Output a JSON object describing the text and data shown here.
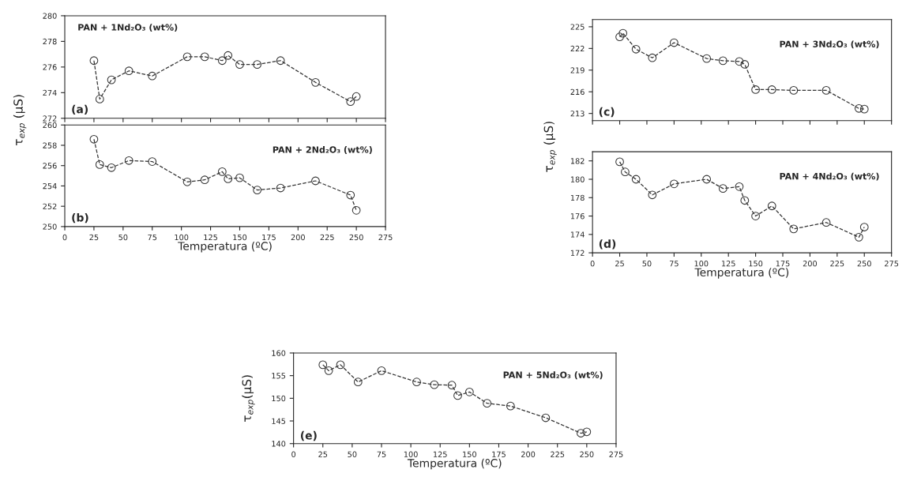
{
  "chart_data": [
    {
      "type": "line",
      "x": [
        25,
        30,
        40,
        55,
        75,
        105,
        120,
        135,
        140,
        150,
        165,
        185,
        215,
        245,
        250
      ],
      "values": [
        276.5,
        273.5,
        275.0,
        275.7,
        275.3,
        276.8,
        276.8,
        276.5,
        276.9,
        276.2,
        276.2,
        276.5,
        274.8,
        273.3,
        273.7
      ],
      "color": "#333333",
      "marker": "circle",
      "line_style": "dashed",
      "xlim": [
        0,
        275
      ],
      "xticks": [
        0,
        25,
        50,
        75,
        100,
        125,
        150,
        175,
        200,
        225,
        250,
        275
      ],
      "ylim": [
        272,
        280
      ],
      "yticks": [
        272,
        274,
        276,
        278,
        280
      ],
      "tick_labels": "y",
      "grid": false,
      "annotations": [
        "PAN + 1Nd₂O₃ (wt%)",
        "(a)"
      ]
    },
    {
      "type": "line",
      "x": [
        25,
        30,
        40,
        55,
        75,
        105,
        120,
        135,
        140,
        150,
        165,
        185,
        215,
        245,
        250
      ],
      "values": [
        258.6,
        256.1,
        255.8,
        256.5,
        256.4,
        254.4,
        254.6,
        255.4,
        254.7,
        254.8,
        253.6,
        253.8,
        254.5,
        253.1,
        251.6
      ],
      "color": "#333333",
      "marker": "circle",
      "line_style": "dashed",
      "xlim": [
        0,
        275
      ],
      "xticks": [
        0,
        25,
        50,
        75,
        100,
        125,
        150,
        175,
        200,
        225,
        250,
        275
      ],
      "ylim": [
        250,
        260
      ],
      "yticks": [
        250,
        252,
        254,
        256,
        258,
        260
      ],
      "xlabel": "Temperatura (ºC)",
      "ylabel": "τ$_{exp}$ (μS)",
      "grid": false,
      "annotations": [
        "PAN + 2Nd₂O₃ (wt%)",
        "(b)"
      ]
    },
    {
      "type": "line",
      "x": [
        25,
        28,
        40,
        55,
        75,
        105,
        120,
        135,
        140,
        150,
        165,
        185,
        215,
        245,
        250
      ],
      "values": [
        223.6,
        224.1,
        221.9,
        220.7,
        222.8,
        220.6,
        220.3,
        220.2,
        219.8,
        216.3,
        216.3,
        216.2,
        216.2,
        213.7,
        213.6
      ],
      "color": "#333333",
      "marker": "circle",
      "line_style": "dashed",
      "xlim": [
        0,
        275
      ],
      "xticks": [
        0,
        25,
        50,
        75,
        100,
        125,
        150,
        175,
        200,
        225,
        250,
        275
      ],
      "ylim": [
        212,
        226
      ],
      "yticks": [
        213,
        216,
        219,
        222,
        225
      ],
      "tick_labels": "y",
      "grid": false,
      "annotations": [
        "PAN + 3Nd₂O₃ (wt%)",
        "(c)"
      ]
    },
    {
      "type": "line",
      "x": [
        25,
        30,
        40,
        55,
        75,
        105,
        120,
        135,
        140,
        150,
        165,
        185,
        215,
        245,
        250
      ],
      "values": [
        181.9,
        180.8,
        180.0,
        178.3,
        179.5,
        180.0,
        179.0,
        179.2,
        177.7,
        176.0,
        177.1,
        174.6,
        175.3,
        173.7,
        174.8
      ],
      "color": "#333333",
      "marker": "circle",
      "line_style": "dashed",
      "xlim": [
        0,
        275
      ],
      "xticks": [
        0,
        25,
        50,
        75,
        100,
        125,
        150,
        175,
        200,
        225,
        250,
        275
      ],
      "ylim": [
        172,
        183
      ],
      "yticks": [
        172,
        174,
        176,
        178,
        180,
        182
      ],
      "xlabel": "Temperatura (ºC)",
      "ylabel": "τ$_{exp}$ (μS)",
      "grid": false,
      "annotations": [
        "PAN + 4Nd₂O₃ (wt%)",
        "(d)"
      ]
    },
    {
      "type": "line",
      "x": [
        25,
        30,
        40,
        55,
        75,
        105,
        120,
        135,
        140,
        150,
        165,
        185,
        215,
        245,
        250
      ],
      "values": [
        157.4,
        156.1,
        157.4,
        153.6,
        156.1,
        153.6,
        153.0,
        152.9,
        150.6,
        151.4,
        148.9,
        148.3,
        145.7,
        142.3,
        142.6
      ],
      "color": "#333333",
      "marker": "circle",
      "line_style": "dashed",
      "xlim": [
        0,
        275
      ],
      "xticks": [
        0,
        25,
        50,
        75,
        100,
        125,
        150,
        175,
        200,
        225,
        250,
        275
      ],
      "ylim": [
        140,
        160
      ],
      "yticks": [
        140,
        145,
        150,
        155,
        160
      ],
      "xlabel": "Temperatura (ºC)",
      "ylabel": "τ$_{exp}$(μS)",
      "grid": false,
      "annotations": [
        "PAN + 5Nd₂O₃ (wt%)",
        "(e)"
      ]
    }
  ]
}
